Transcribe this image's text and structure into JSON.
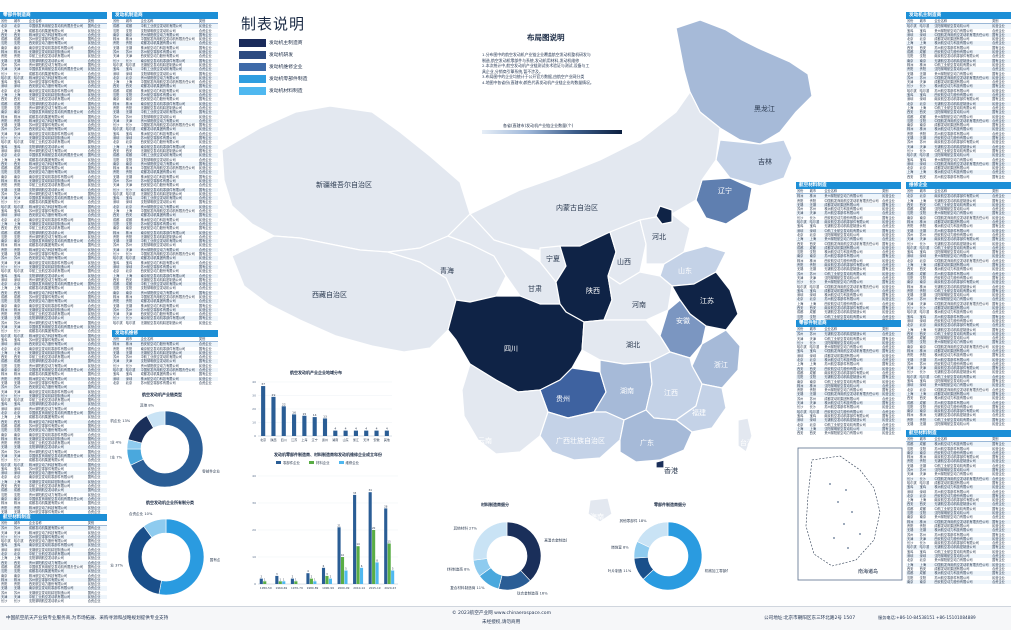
{
  "legend": {
    "title": "制表说明",
    "items": [
      {
        "label": "发动机主制造商",
        "color": "#1a2a5a"
      },
      {
        "label": "发动机研发",
        "color": "#2c4a80"
      },
      {
        "label": "发动机维修企业",
        "color": "#3e6aa8"
      },
      {
        "label": "发动机零部件制造",
        "color": "#2f9ee0"
      },
      {
        "label": "发动机材料制造",
        "color": "#4fb8f0"
      }
    ]
  },
  "layout_note": {
    "title": "布局图说明",
    "lines": [
      "1.分布图中的航空发动机产业链企业覆盖航空发动机整机研发与",
      "制造,航空发动机零部件与系统,发动机用材料,发动机维修",
      "2.本次统计中,航空发动机产业链测试技术验证与测试,设备与工",
      "具企业,分销商引擎系统,暂不涉及。",
      "3.布局图中的企业均统计于公开官方数据,由航空产业网分类",
      "4.地图中各省份(直辖市)颜色代表发动机产业链企业的数量情况。"
    ],
    "scale_title": "各省(直辖市)发动机产业链企业数量(个)"
  },
  "map": {
    "provinces": [
      {
        "name": "黑龙江",
        "tone": "dark"
      },
      {
        "name": "吉林",
        "tone": "dark"
      },
      {
        "name": "辽宁",
        "tone": "light"
      },
      {
        "name": "内蒙古自治区",
        "tone": "dark"
      },
      {
        "name": "新疆维吾尔自治区",
        "tone": "dark"
      },
      {
        "name": "西藏自治区",
        "tone": "dark"
      },
      {
        "name": "青海",
        "tone": "dark"
      },
      {
        "name": "甘肃",
        "tone": "dark"
      },
      {
        "name": "宁夏",
        "tone": "dark"
      },
      {
        "name": "陕西",
        "tone": "light"
      },
      {
        "name": "山西",
        "tone": "dark"
      },
      {
        "name": "河北",
        "tone": "dark"
      },
      {
        "name": "山东",
        "tone": "light"
      },
      {
        "name": "河南",
        "tone": "dark"
      },
      {
        "name": "江苏",
        "tone": "light"
      },
      {
        "name": "安徽",
        "tone": "light"
      },
      {
        "name": "四川",
        "tone": "light"
      },
      {
        "name": "湖北",
        "tone": "dark"
      },
      {
        "name": "浙江",
        "tone": "light"
      },
      {
        "name": "贵州",
        "tone": "light"
      },
      {
        "name": "湖南",
        "tone": "light"
      },
      {
        "name": "江西",
        "tone": "light"
      },
      {
        "name": "福建",
        "tone": "light"
      },
      {
        "name": "云南",
        "tone": "light"
      },
      {
        "name": "广西壮族自治区",
        "tone": "light"
      },
      {
        "name": "广东",
        "tone": "light"
      },
      {
        "name": "台湾",
        "tone": "light"
      },
      {
        "name": "香港",
        "tone": "dark"
      },
      {
        "name": "海南",
        "tone": "light"
      }
    ],
    "inset_label": "南海诸岛"
  },
  "tables": {
    "main_makers": {
      "title": "零部件制造商"
    },
    "engine_makers": {
      "title": "发动机制造商"
    },
    "repair": {
      "title": "发动机维修"
    },
    "materials": {
      "title": "航空材料制造"
    },
    "right_top": {
      "title": "发动机主制造商"
    },
    "right_mid": {
      "title": "维修企业"
    },
    "right_bottom": {
      "title": "航空材料制造"
    },
    "columns": [
      "省份",
      "城市",
      "企业名称",
      "类别"
    ],
    "row_cities": [
      "北京",
      "上海",
      "西安",
      "成都",
      "沈阳",
      "南京",
      "株洲",
      "贵阳",
      "无锡",
      "苏州",
      "天津",
      "长沙",
      "哈尔滨",
      "宝鸡",
      "深圳"
    ],
    "row_companies": [
      "中国航发商用航空发动机有限责任公司",
      "中航工业航空发动机有限公司",
      "西安航空动力股份有限公司",
      "成都发动机集团有限公司",
      "沈阳黎明航空发动机公司",
      "南京航空发动机零部件有限公司",
      "株洲航空动力科技有限公司",
      "贵州黎阳航空动力有限公司",
      "无锡航空发动机精密制造公司",
      "苏州航空零部件有限公司"
    ],
    "row_types": [
      "国有企业",
      "民营企业",
      "合资企业"
    ]
  },
  "charts": {
    "pie_types": {
      "title": "航空发动机产业链类型",
      "slices": [
        {
          "label": "零部件企业 68%",
          "value": 68,
          "color": "#2a5d95"
        },
        {
          "label": "维修企业 7%",
          "value": 7,
          "color": "#4aa8dd"
        },
        {
          "label": "研发企业 4%",
          "value": 4,
          "color": "#8ecbef"
        },
        {
          "label": "整机企业 13%",
          "value": 13,
          "color": "#1a2f5a"
        },
        {
          "label": "其他 8%",
          "value": 8,
          "color": "#c9e3f5"
        }
      ]
    },
    "pie_ownership": {
      "title": "航空发动机企业所有制分类",
      "slices": [
        {
          "label": "国有企业 53%",
          "value": 53,
          "color": "#2a9be0"
        },
        {
          "label": "民营企业 37%",
          "value": 37,
          "color": "#1a4f8a"
        },
        {
          "label": "合资企业 10%",
          "value": 10,
          "color": "#8ecbef"
        }
      ]
    },
    "bar_distribution": {
      "title": "航空发动机产业企业地域分布",
      "categories": [
        "北京",
        "陕西",
        "四川",
        "江苏",
        "上海",
        "辽宁",
        "贵州",
        "湖南",
        "山东",
        "浙江",
        "天津",
        "安徽",
        "其他"
      ],
      "values": [
        37,
        29,
        22,
        16,
        15,
        14,
        13,
        4,
        4,
        4,
        4,
        4,
        4
      ],
      "color": "#2a5d95",
      "ylim": [
        0,
        40
      ]
    },
    "bar_grouped": {
      "title": "发动机零部件制造商、材料制造商和发动机维修企业成立年份",
      "legend": [
        "零部件企业",
        "材料企业",
        "维修企业"
      ],
      "colors": [
        "#2a5d95",
        "#5aad45",
        "#4fb8f0"
      ],
      "categories": [
        "1950-59",
        "1960-69",
        "1970-79",
        "1980-89",
        "1990-99",
        "2000-09",
        "2010-14",
        "2015-19",
        "2020-23"
      ],
      "series": [
        [
          2,
          3,
          2,
          4,
          6,
          21,
          33,
          34,
          28
        ],
        [
          1,
          1,
          1,
          2,
          3,
          10,
          14,
          20,
          15
        ],
        [
          0,
          1,
          0,
          1,
          2,
          5,
          6,
          8,
          5
        ]
      ],
      "ylim": [
        0,
        40
      ]
    },
    "pie_material": {
      "title": "材料制造商细分",
      "slices": [
        {
          "label": "高温合金制造商 38%",
          "value": 38,
          "color": "#1a2f5a"
        },
        {
          "label": "钛合金制造商 16%",
          "value": 16,
          "color": "#2a5d95"
        },
        {
          "label": "复合材料制造商 11%",
          "value": 11,
          "color": "#4aa8dd"
        },
        {
          "label": "陶瓷材料制造商 8%",
          "value": 8,
          "color": "#8ecbef"
        },
        {
          "label": "其他材料 27%",
          "value": 27,
          "color": "#c9e3f5"
        }
      ]
    },
    "pie_parts": {
      "title": "零部件制造商细分",
      "slices": [
        {
          "label": "机械加工零部件 63%",
          "value": 63,
          "color": "#2a9be0"
        },
        {
          "label": "叶片制造 11%",
          "value": 11,
          "color": "#1a4f8a"
        },
        {
          "label": "燃烧室 8%",
          "value": 8,
          "color": "#8ecbef"
        },
        {
          "label": "其他零部件 18%",
          "value": 18,
          "color": "#c9e3f5"
        }
      ]
    }
  },
  "footer": {
    "left": "中国航空航天产业链专业服务商,为市场拓展、采购寻源和战略规划提供专业支持",
    "center_line1": "© 2023航空产业网 www.chinaerospace.com",
    "center_line2": "未经授权,请勿商用",
    "address": "公司地址:北京市朝阳区东三环北路2号 1507",
    "phone": "服务电话:+86-10-84538151     +86-15101084889"
  }
}
